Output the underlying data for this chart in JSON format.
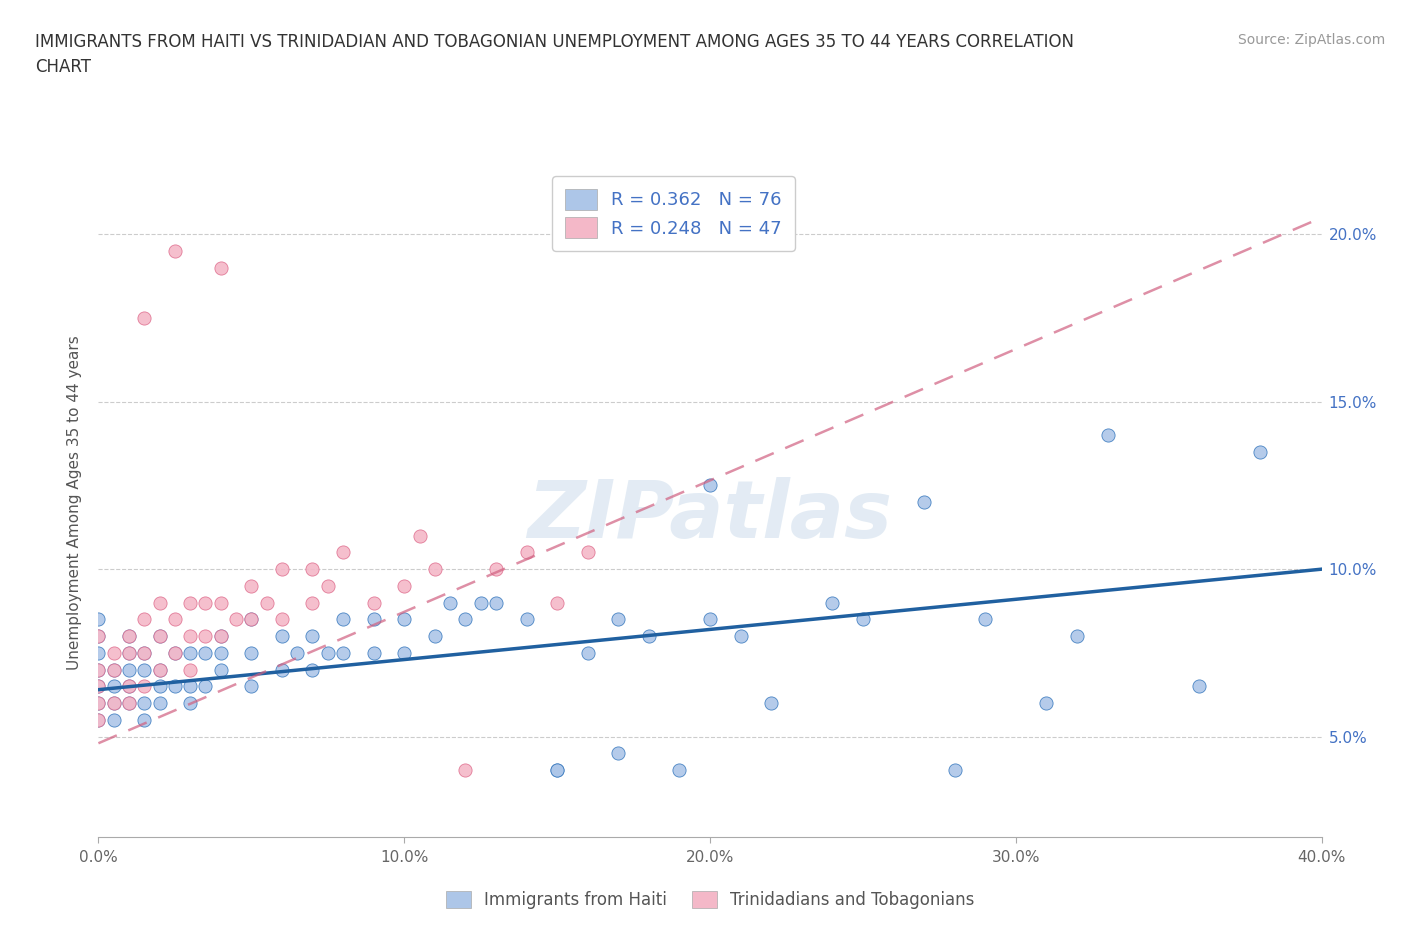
{
  "title": "IMMIGRANTS FROM HAITI VS TRINIDADIAN AND TOBAGONIAN UNEMPLOYMENT AMONG AGES 35 TO 44 YEARS CORRELATION\nCHART",
  "source": "Source: ZipAtlas.com",
  "ylabel": "Unemployment Among Ages 35 to 44 years",
  "xlim": [
    0.0,
    0.4
  ],
  "ylim": [
    0.02,
    0.22
  ],
  "xticks": [
    0.0,
    0.1,
    0.2,
    0.3,
    0.4
  ],
  "xticklabels": [
    "0.0%",
    "10.0%",
    "20.0%",
    "30.0%",
    "40.0%"
  ],
  "ytick_positions": [
    0.05,
    0.1,
    0.15,
    0.2
  ],
  "ytick_labels": [
    "5.0%",
    "10.0%",
    "15.0%",
    "20.0%"
  ],
  "haiti_color": "#adc6e8",
  "tt_color": "#f4b8c8",
  "haiti_edge_color": "#3a7abf",
  "tt_edge_color": "#e07090",
  "haiti_line_color": "#2060a0",
  "tt_line_color": "#d06080",
  "haiti_R": 0.362,
  "haiti_N": 76,
  "tt_R": 0.248,
  "tt_N": 47,
  "legend_label_haiti": "Immigrants from Haiti",
  "legend_label_tt": "Trinidadians and Tobagonians",
  "watermark": "ZIPatlas",
  "haiti_line_x0": 0.0,
  "haiti_line_y0": 0.064,
  "haiti_line_x1": 0.4,
  "haiti_line_y1": 0.1,
  "tt_line_x0": 0.0,
  "tt_line_y0": 0.048,
  "tt_line_x1": 0.4,
  "tt_line_y1": 0.205,
  "haiti_x": [
    0.0,
    0.0,
    0.0,
    0.0,
    0.0,
    0.0,
    0.0,
    0.005,
    0.005,
    0.005,
    0.005,
    0.01,
    0.01,
    0.01,
    0.01,
    0.01,
    0.015,
    0.015,
    0.015,
    0.015,
    0.02,
    0.02,
    0.02,
    0.02,
    0.025,
    0.025,
    0.03,
    0.03,
    0.03,
    0.035,
    0.035,
    0.04,
    0.04,
    0.04,
    0.05,
    0.05,
    0.05,
    0.06,
    0.06,
    0.065,
    0.07,
    0.07,
    0.075,
    0.08,
    0.08,
    0.09,
    0.09,
    0.1,
    0.1,
    0.11,
    0.115,
    0.12,
    0.125,
    0.13,
    0.14,
    0.15,
    0.16,
    0.17,
    0.18,
    0.19,
    0.2,
    0.21,
    0.22,
    0.25,
    0.27,
    0.28,
    0.29,
    0.31,
    0.32,
    0.33,
    0.36,
    0.38,
    0.2,
    0.24,
    0.15,
    0.17
  ],
  "haiti_y": [
    0.055,
    0.06,
    0.065,
    0.07,
    0.075,
    0.08,
    0.085,
    0.055,
    0.06,
    0.065,
    0.07,
    0.06,
    0.065,
    0.07,
    0.075,
    0.08,
    0.055,
    0.06,
    0.07,
    0.075,
    0.06,
    0.065,
    0.07,
    0.08,
    0.065,
    0.075,
    0.06,
    0.065,
    0.075,
    0.065,
    0.075,
    0.07,
    0.075,
    0.08,
    0.065,
    0.075,
    0.085,
    0.07,
    0.08,
    0.075,
    0.07,
    0.08,
    0.075,
    0.075,
    0.085,
    0.075,
    0.085,
    0.075,
    0.085,
    0.08,
    0.09,
    0.085,
    0.09,
    0.09,
    0.085,
    0.04,
    0.075,
    0.085,
    0.08,
    0.04,
    0.085,
    0.08,
    0.06,
    0.085,
    0.12,
    0.04,
    0.085,
    0.06,
    0.08,
    0.14,
    0.065,
    0.135,
    0.125,
    0.09,
    0.04,
    0.045
  ],
  "tt_x": [
    0.0,
    0.0,
    0.0,
    0.0,
    0.0,
    0.005,
    0.005,
    0.005,
    0.01,
    0.01,
    0.01,
    0.01,
    0.015,
    0.015,
    0.015,
    0.02,
    0.02,
    0.02,
    0.025,
    0.025,
    0.03,
    0.03,
    0.03,
    0.035,
    0.035,
    0.04,
    0.04,
    0.045,
    0.05,
    0.05,
    0.055,
    0.06,
    0.06,
    0.07,
    0.07,
    0.075,
    0.08,
    0.09,
    0.1,
    0.105,
    0.11,
    0.13,
    0.14,
    0.15,
    0.16,
    0.04,
    0.12
  ],
  "tt_y": [
    0.055,
    0.06,
    0.065,
    0.07,
    0.08,
    0.06,
    0.07,
    0.075,
    0.06,
    0.065,
    0.075,
    0.08,
    0.065,
    0.075,
    0.085,
    0.07,
    0.08,
    0.09,
    0.075,
    0.085,
    0.07,
    0.08,
    0.09,
    0.08,
    0.09,
    0.08,
    0.09,
    0.085,
    0.085,
    0.095,
    0.09,
    0.085,
    0.1,
    0.09,
    0.1,
    0.095,
    0.105,
    0.09,
    0.095,
    0.11,
    0.1,
    0.1,
    0.105,
    0.09,
    0.105,
    0.19,
    0.04
  ]
}
